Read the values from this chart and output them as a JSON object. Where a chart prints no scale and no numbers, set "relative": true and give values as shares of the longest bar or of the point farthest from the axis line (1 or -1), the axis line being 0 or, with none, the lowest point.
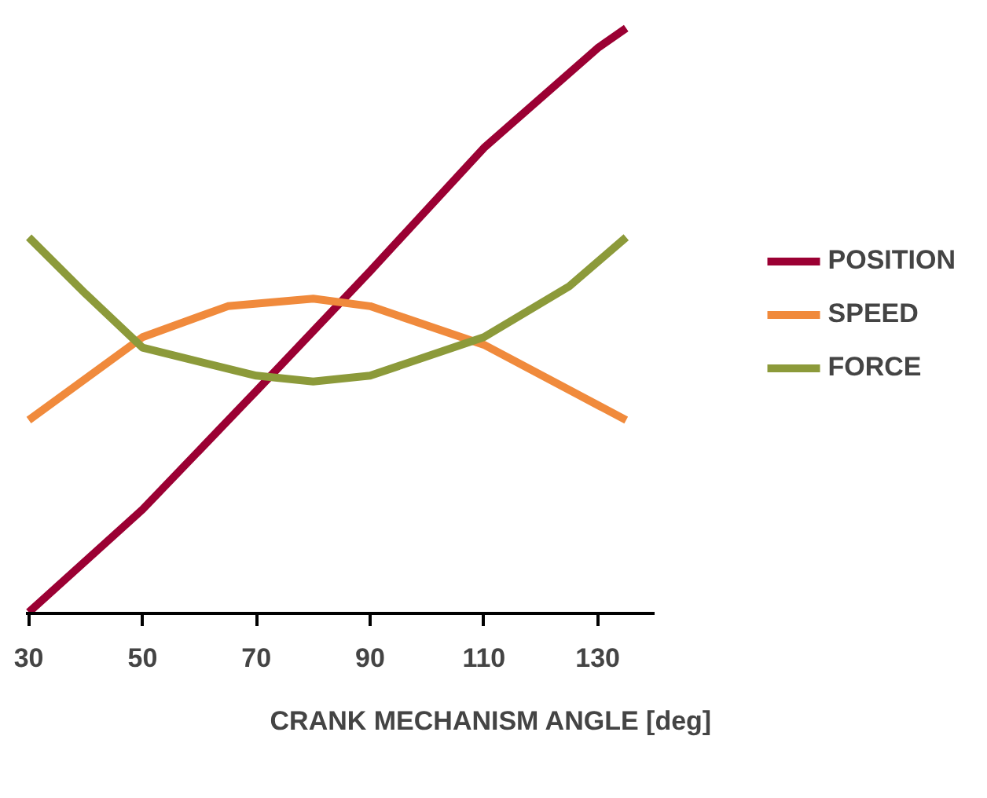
{
  "chart_data": {
    "type": "line",
    "relative": true,
    "xlabel": "CRANK MECHANISM ANGLE [deg]",
    "xlim": [
      29.5,
      140
    ],
    "xticks": [
      30,
      50,
      70,
      90,
      110,
      130
    ],
    "grid": false,
    "legend": "right",
    "marker": "none",
    "line_style": "solid",
    "series": [
      {
        "name": "POSITION",
        "color": "#9b0033",
        "x": [
          30,
          50,
          70,
          90,
          110,
          130,
          135
        ],
        "values": [
          0,
          0.176,
          0.379,
          0.584,
          0.795,
          0.966,
          1
        ]
      },
      {
        "name": "SPEED",
        "color": "#f08a3c",
        "x": [
          30,
          50,
          65,
          80,
          90,
          110,
          135
        ],
        "values": [
          0.329,
          0.471,
          0.524,
          0.537,
          0.524,
          0.458,
          0.329
        ]
      },
      {
        "name": "FORCE",
        "color": "#8c9a3a",
        "x": [
          30,
          40,
          50,
          70,
          80,
          90,
          110,
          125,
          135
        ],
        "values": [
          0.642,
          0.545,
          0.453,
          0.405,
          0.395,
          0.405,
          0.471,
          0.558,
          0.642
        ]
      }
    ]
  }
}
